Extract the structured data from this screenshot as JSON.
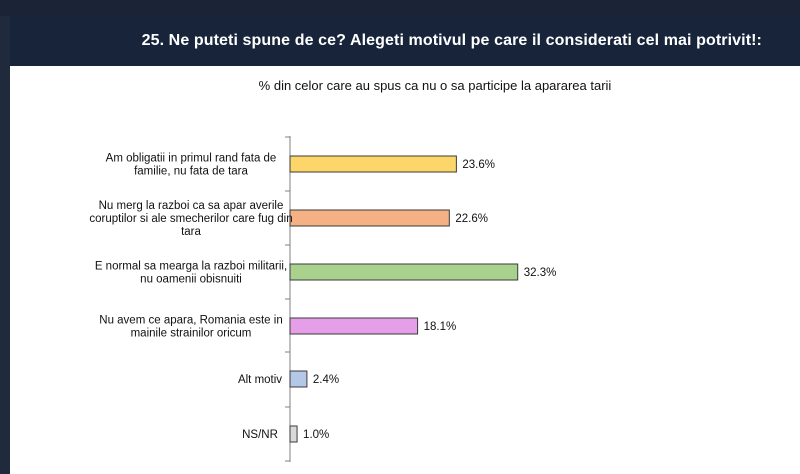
{
  "header": {
    "title": "25. Ne puteti spune de ce? Alegeti motivul pe care il considerati cel mai potrivit!:"
  },
  "chart_data": {
    "type": "bar",
    "orientation": "horizontal",
    "title": "% din celor care au spus ca nu o sa participe la apararea tarii",
    "categories": [
      [
        "Am obligatii in primul rand fata de",
        "familie, nu fata de tara"
      ],
      [
        "Nu merg la razboi ca sa apar averile",
        "coruptilor si ale smecherilor care fug din",
        "tara"
      ],
      [
        "E normal sa mearga la razboi militarii,",
        "nu oamenii obisnuiti"
      ],
      [
        "Nu avem ce apara, Romania este in",
        "mainile strainilor oricum"
      ],
      [
        "Alt motiv"
      ],
      [
        "NS/NR"
      ]
    ],
    "values": [
      23.6,
      22.6,
      32.3,
      18.1,
      2.4,
      1.0
    ],
    "value_labels": [
      "23.6%",
      "22.6%",
      "32.3%",
      "18.1%",
      "2.4%",
      "1.0%"
    ],
    "colors": [
      "#fdd66a",
      "#f4b183",
      "#a9d18e",
      "#e59ee8",
      "#b4c7e7",
      "#d9d9d9"
    ],
    "xlim": [
      0,
      40
    ],
    "grid": false,
    "legend": "none"
  }
}
